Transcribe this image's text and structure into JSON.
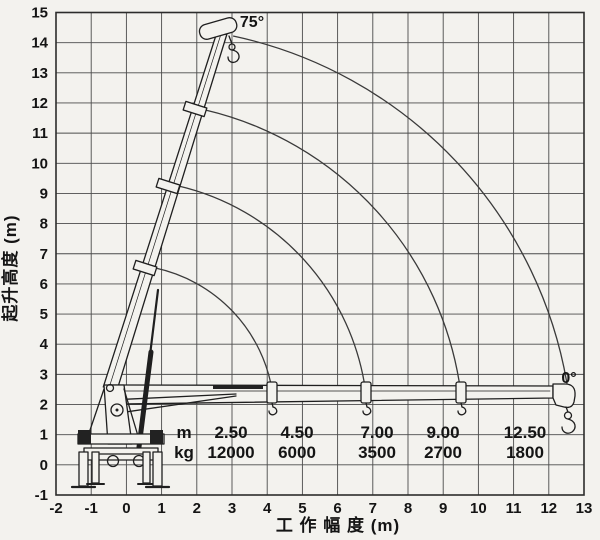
{
  "chart_data": {
    "type": "line",
    "title": "",
    "xlabel": "工 作 幅 度 (m)",
    "ylabel": "起升高度 (m)",
    "xlim": [
      -2,
      13
    ],
    "ylim": [
      -1,
      15
    ],
    "x_ticks": [
      -2,
      -1,
      0,
      1,
      2,
      3,
      4,
      5,
      6,
      7,
      8,
      9,
      10,
      11,
      12,
      13
    ],
    "y_ticks": [
      -1,
      0,
      1,
      2,
      3,
      4,
      5,
      6,
      7,
      8,
      9,
      10,
      11,
      12,
      13,
      14,
      15
    ],
    "grid": true,
    "legend": "none",
    "boom_angles": {
      "max": "75°",
      "min": "0°"
    },
    "load_table": {
      "row_labels": [
        "m",
        "kg"
      ],
      "columns": [
        {
          "m": "2.50",
          "kg": "12000"
        },
        {
          "m": "4.50",
          "kg": "6000"
        },
        {
          "m": "7.00",
          "kg": "3500"
        },
        {
          "m": "9.00",
          "kg": "2700"
        },
        {
          "m": "12.50",
          "kg": "1800"
        }
      ]
    },
    "envelope_arcs": [
      {
        "from": [
          0.81,
          6.53
        ],
        "to": [
          4.15,
          2.4
        ]
      },
      {
        "from": [
          1.47,
          9.25
        ],
        "to": [
          6.8,
          2.4
        ]
      },
      {
        "from": [
          2.23,
          11.77
        ],
        "to": [
          9.5,
          2.4
        ]
      },
      {
        "from": [
          3.03,
          14.22
        ],
        "to": [
          12.55,
          2.45
        ]
      }
    ]
  }
}
